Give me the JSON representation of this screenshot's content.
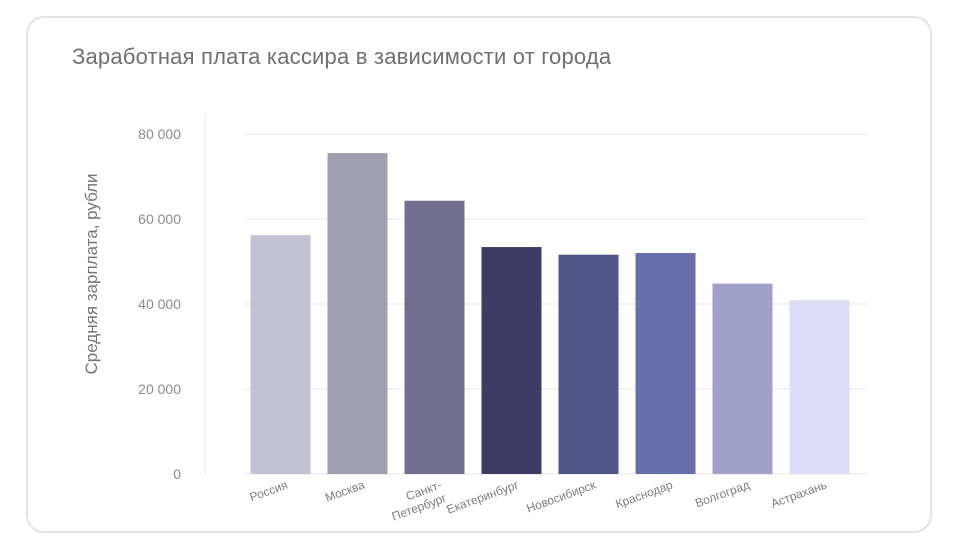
{
  "chart_data": {
    "type": "bar",
    "title": "Заработная плата кассира в зависимости от города",
    "xlabel": "",
    "ylabel": "Средняя зарплата, рубли",
    "ylim": [
      0,
      80000
    ],
    "yticks": [
      0,
      20000,
      40000,
      60000,
      80000
    ],
    "ytick_labels": [
      "0",
      "20 000",
      "40 000",
      "60 000",
      "80 000"
    ],
    "categories": [
      "Россия",
      "Москва",
      "Санкт-Петербург",
      "Екатеринбург",
      "Новосибирск",
      "Краснодар",
      "Волгоград",
      "Астрахань"
    ],
    "category_label_lines": [
      [
        "Россия"
      ],
      [
        "Москва"
      ],
      [
        "Санкт-",
        "Петербург"
      ],
      [
        "Екатеринбург"
      ],
      [
        "Новосибирск"
      ],
      [
        "Краснодар"
      ],
      [
        "Волгоград"
      ],
      [
        "Астрахань"
      ]
    ],
    "values": [
      56200,
      75500,
      64300,
      53400,
      51600,
      52000,
      44800,
      40900
    ],
    "colors": [
      "#c3c1d6",
      "#a09fb1",
      "#726e8e",
      "#3e3b66",
      "#515587",
      "#6670ab",
      "#a0a0c9",
      "#dcdcf6"
    ],
    "grid": true
  }
}
